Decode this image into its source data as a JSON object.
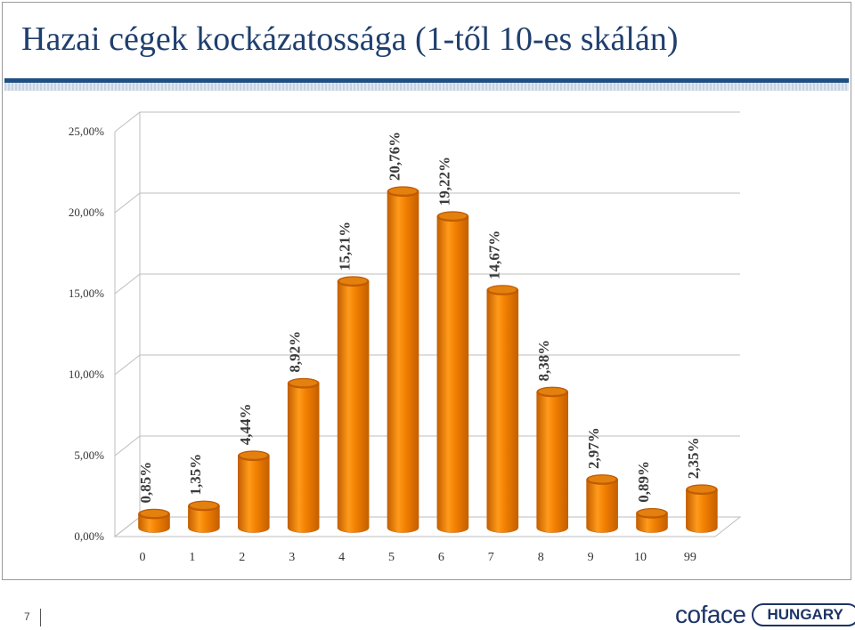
{
  "slide": {
    "title": "Hazai cégek kockázatossága (1-től 10-es skálán)",
    "page_number": "7"
  },
  "logo": {
    "brand": "coface",
    "tag": "HUNGARY",
    "badge": "fb"
  },
  "colors": {
    "bar": "#f07e00",
    "bar_light": "#ff9a1a",
    "bar_dark": "#c45f00",
    "grid": "#bdbdbd",
    "title": "#1f3f6e"
  },
  "chart_data": {
    "type": "bar",
    "title": "",
    "xlabel": "",
    "ylabel": "",
    "categories": [
      "0",
      "1",
      "2",
      "3",
      "4",
      "5",
      "6",
      "7",
      "8",
      "9",
      "10",
      "99"
    ],
    "values": [
      0.85,
      1.35,
      4.44,
      8.92,
      15.21,
      20.76,
      19.22,
      14.67,
      8.38,
      2.97,
      0.89,
      2.35
    ],
    "value_labels": [
      "0,85%",
      "1,35%",
      "4,44%",
      "8,92%",
      "15,21%",
      "20,76%",
      "19,22%",
      "14,67%",
      "8,38%",
      "2,97%",
      "0,89%",
      "2,35%"
    ],
    "ylim": [
      0,
      25
    ],
    "yticks": [
      0,
      5,
      10,
      15,
      20,
      25
    ],
    "ytick_labels": [
      "0,00%",
      "5,00%",
      "10,00%",
      "15,00%",
      "20,00%",
      "25,00%"
    ],
    "grid": true,
    "style": "3d-cylinder"
  }
}
